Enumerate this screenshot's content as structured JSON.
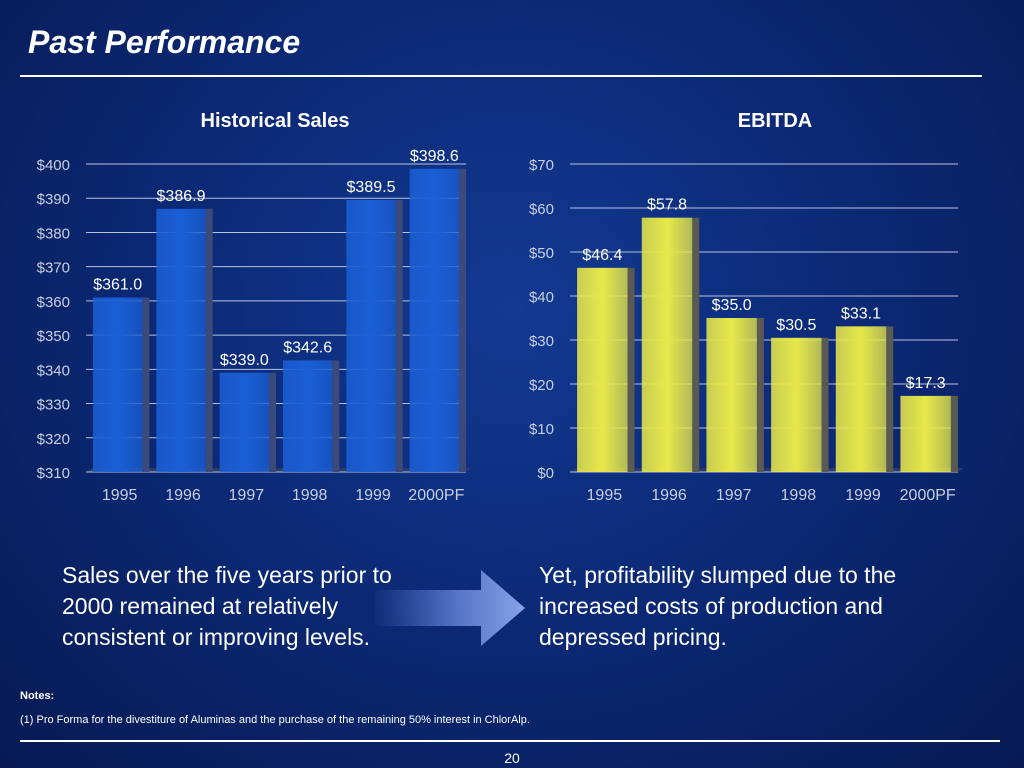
{
  "slide": {
    "title": "Past Performance",
    "left_caption": "Sales over the five years prior to 2000 remained at relatively consistent or improving levels.",
    "right_caption": "Yet, profitability slumped due to the increased costs of production and depressed pricing.",
    "notes_heading": "Notes:",
    "note_1": "(1) Pro Forma for the divestiture of Aluminas and the purchase of the remaining 50% interest in ChlorAlp.",
    "page_number": "20"
  },
  "colors": {
    "sales_bar": "#1a5fd6",
    "ebitda_bar": "#e8e84a"
  },
  "chart_data": [
    {
      "type": "bar",
      "title": "Historical Sales",
      "categories": [
        "1995",
        "1996",
        "1997",
        "1998",
        "1999",
        "2000PF"
      ],
      "values": [
        361.0,
        386.9,
        339.0,
        342.6,
        389.5,
        398.6
      ],
      "data_labels": [
        "$361.0",
        "$386.9",
        "$339.0",
        "$342.6",
        "$389.5",
        "$398.6"
      ],
      "ylim": [
        310,
        400
      ],
      "yticks": [
        310,
        320,
        330,
        340,
        350,
        360,
        370,
        380,
        390,
        400
      ],
      "ytick_labels": [
        "$310",
        "$320",
        "$330",
        "$340",
        "$350",
        "$360",
        "$370",
        "$380",
        "$390",
        "$400"
      ],
      "grid": true,
      "legend": "none"
    },
    {
      "type": "bar",
      "title": "EBITDA",
      "categories": [
        "1995",
        "1996",
        "1997",
        "1998",
        "1999",
        "2000PF"
      ],
      "values": [
        46.4,
        57.8,
        35.0,
        30.5,
        33.1,
        17.3
      ],
      "data_labels": [
        "$46.4",
        "$57.8",
        "$35.0",
        "$30.5",
        "$33.1",
        "$17.3"
      ],
      "ylim": [
        0,
        70
      ],
      "yticks": [
        0,
        10,
        20,
        30,
        40,
        50,
        60,
        70
      ],
      "ytick_labels": [
        "$0",
        "$10",
        "$20",
        "$30",
        "$40",
        "$50",
        "$60",
        "$70"
      ],
      "grid": true,
      "legend": "none"
    }
  ]
}
